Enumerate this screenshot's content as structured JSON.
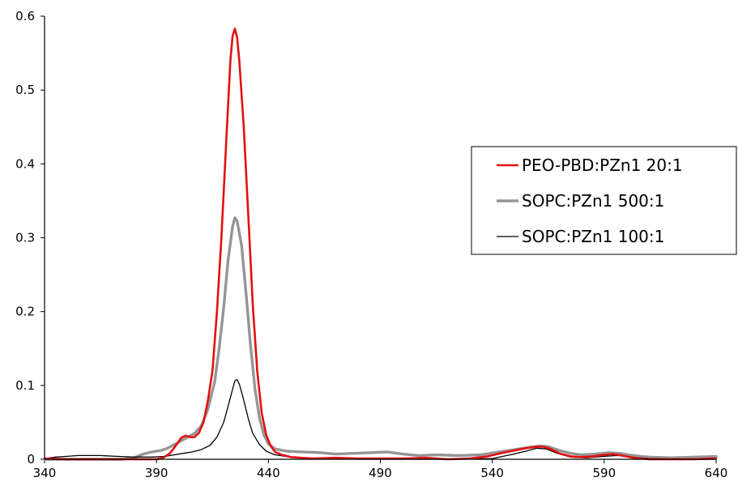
{
  "chart_data": {
    "type": "line",
    "title": "",
    "xlabel": "",
    "ylabel": "",
    "xlim": [
      340,
      640
    ],
    "ylim": [
      0,
      0.6
    ],
    "x_ticks": [
      340,
      390,
      440,
      490,
      540,
      590,
      640
    ],
    "y_ticks": [
      0,
      0.1,
      0.2,
      0.3,
      0.4,
      0.5,
      0.6
    ],
    "x_tick_labels": [
      "340",
      "390",
      "440",
      "490",
      "540",
      "590",
      "640"
    ],
    "y_tick_labels": [
      "0",
      "0.1",
      "0.2",
      "0.3",
      "0.4",
      "0.5",
      "0.6"
    ],
    "grid": false,
    "legend_position": "right",
    "series": [
      {
        "name": "PEO-PBD:PZn1 20:1",
        "color": "#e3100f",
        "line_width": 2.6,
        "points": [
          [
            340,
            0.001
          ],
          [
            350,
            0
          ],
          [
            360,
            0
          ],
          [
            370,
            0
          ],
          [
            380,
            0
          ],
          [
            390,
            0
          ],
          [
            393,
            0.002
          ],
          [
            396,
            0.008
          ],
          [
            399,
            0.02
          ],
          [
            401,
            0.029
          ],
          [
            403,
            0.032
          ],
          [
            405,
            0.03
          ],
          [
            407,
            0.03
          ],
          [
            409,
            0.036
          ],
          [
            411,
            0.05
          ],
          [
            413,
            0.08
          ],
          [
            415,
            0.12
          ],
          [
            417,
            0.2
          ],
          [
            419,
            0.3
          ],
          [
            421,
            0.42
          ],
          [
            423,
            0.54
          ],
          [
            424,
            0.573
          ],
          [
            425,
            0.583
          ],
          [
            426,
            0.572
          ],
          [
            427,
            0.54
          ],
          [
            429,
            0.45
          ],
          [
            431,
            0.33
          ],
          [
            433,
            0.21
          ],
          [
            435,
            0.12
          ],
          [
            437,
            0.063
          ],
          [
            439,
            0.033
          ],
          [
            441,
            0.018
          ],
          [
            443,
            0.01
          ],
          [
            446,
            0.006
          ],
          [
            450,
            0.003
          ],
          [
            460,
            0.001
          ],
          [
            470,
            0.002
          ],
          [
            480,
            0.001
          ],
          [
            490,
            0.001
          ],
          [
            500,
            0.001
          ],
          [
            510,
            0.002
          ],
          [
            520,
            0
          ],
          [
            530,
            0.001
          ],
          [
            538,
            0.004
          ],
          [
            545,
            0.009
          ],
          [
            550,
            0.012
          ],
          [
            555,
            0.015
          ],
          [
            560,
            0.017
          ],
          [
            563,
            0.017
          ],
          [
            566,
            0.014
          ],
          [
            570,
            0.008
          ],
          [
            575,
            0.004
          ],
          [
            580,
            0.003
          ],
          [
            585,
            0.004
          ],
          [
            590,
            0.006
          ],
          [
            594,
            0.007
          ],
          [
            598,
            0.005
          ],
          [
            603,
            0.002
          ],
          [
            610,
            0
          ],
          [
            620,
            0
          ],
          [
            630,
            0
          ],
          [
            640,
            0.001
          ]
        ]
      },
      {
        "name": "SOPC:PZn1 500:1",
        "color": "#959595",
        "line_width": 3.4,
        "points": [
          [
            340,
            0
          ],
          [
            360,
            0
          ],
          [
            375,
            0
          ],
          [
            380,
            0.002
          ],
          [
            384,
            0.007
          ],
          [
            388,
            0.01
          ],
          [
            392,
            0.012
          ],
          [
            395,
            0.015
          ],
          [
            398,
            0.02
          ],
          [
            401,
            0.025
          ],
          [
            404,
            0.03
          ],
          [
            407,
            0.035
          ],
          [
            410,
            0.045
          ],
          [
            413,
            0.068
          ],
          [
            416,
            0.105
          ],
          [
            418,
            0.15
          ],
          [
            420,
            0.205
          ],
          [
            422,
            0.27
          ],
          [
            424,
            0.315
          ],
          [
            425,
            0.327
          ],
          [
            426,
            0.323
          ],
          [
            428,
            0.29
          ],
          [
            430,
            0.225
          ],
          [
            432,
            0.155
          ],
          [
            434,
            0.095
          ],
          [
            436,
            0.056
          ],
          [
            438,
            0.033
          ],
          [
            440,
            0.021
          ],
          [
            443,
            0.014
          ],
          [
            448,
            0.011
          ],
          [
            455,
            0.01
          ],
          [
            463,
            0.009
          ],
          [
            470,
            0.007
          ],
          [
            478,
            0.008
          ],
          [
            486,
            0.009
          ],
          [
            493,
            0.01
          ],
          [
            500,
            0.007
          ],
          [
            507,
            0.005
          ],
          [
            515,
            0.006
          ],
          [
            525,
            0.005
          ],
          [
            535,
            0.006
          ],
          [
            543,
            0.01
          ],
          [
            550,
            0.013
          ],
          [
            556,
            0.016
          ],
          [
            561,
            0.018
          ],
          [
            565,
            0.017
          ],
          [
            570,
            0.012
          ],
          [
            575,
            0.008
          ],
          [
            580,
            0.006
          ],
          [
            586,
            0.007
          ],
          [
            592,
            0.009
          ],
          [
            597,
            0.008
          ],
          [
            603,
            0.005
          ],
          [
            610,
            0.003
          ],
          [
            620,
            0.002
          ],
          [
            630,
            0.003
          ],
          [
            640,
            0.004
          ]
        ]
      },
      {
        "name": "SOPC:PZn1 100:1",
        "color": "#000000",
        "line_width": 1.3,
        "points": [
          [
            340,
            0.001
          ],
          [
            345,
            0.003
          ],
          [
            350,
            0.004
          ],
          [
            355,
            0.005
          ],
          [
            360,
            0.005
          ],
          [
            365,
            0.005
          ],
          [
            372,
            0.004
          ],
          [
            380,
            0.003
          ],
          [
            388,
            0.003
          ],
          [
            394,
            0.004
          ],
          [
            398,
            0.006
          ],
          [
            402,
            0.008
          ],
          [
            406,
            0.01
          ],
          [
            410,
            0.013
          ],
          [
            414,
            0.019
          ],
          [
            417,
            0.03
          ],
          [
            420,
            0.05
          ],
          [
            422,
            0.072
          ],
          [
            424,
            0.095
          ],
          [
            425,
            0.106
          ],
          [
            426,
            0.108
          ],
          [
            427,
            0.102
          ],
          [
            429,
            0.08
          ],
          [
            431,
            0.055
          ],
          [
            433,
            0.035
          ],
          [
            436,
            0.02
          ],
          [
            439,
            0.011
          ],
          [
            443,
            0.006
          ],
          [
            450,
            0.003
          ],
          [
            460,
            0.001
          ],
          [
            480,
            0
          ],
          [
            500,
            0
          ],
          [
            520,
            0
          ],
          [
            540,
            0.001
          ],
          [
            548,
            0.006
          ],
          [
            555,
            0.011
          ],
          [
            560,
            0.015
          ],
          [
            564,
            0.014
          ],
          [
            569,
            0.008
          ],
          [
            575,
            0.003
          ],
          [
            582,
            0.002
          ],
          [
            590,
            0.004
          ],
          [
            596,
            0.005
          ],
          [
            602,
            0.003
          ],
          [
            610,
            0.001
          ],
          [
            625,
            0
          ],
          [
            640,
            0
          ]
        ]
      }
    ]
  }
}
